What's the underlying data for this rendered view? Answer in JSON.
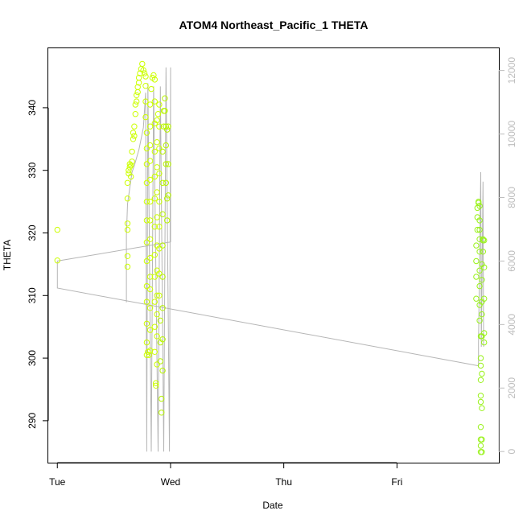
{
  "chart_data": {
    "type": "scatter",
    "title": "ATOM4 Northeast_Pacific_1 THETA",
    "xlabel": "Date",
    "ylabel": "THETA",
    "x_tick_labels": [
      "Tue",
      "Wed",
      "Thu",
      "Fri"
    ],
    "x_unit": "days since Tue 00:00",
    "xlim": [
      -0.08,
      3.9
    ],
    "ylim": [
      283.3,
      349.5
    ],
    "y_ticks": [
      290,
      300,
      310,
      320,
      330,
      340
    ],
    "y2_ticks": [
      0,
      2000,
      4000,
      6000,
      8000,
      10000,
      12000
    ],
    "y2lim": [
      -350,
      12700
    ],
    "colors": {
      "axis": "#000000",
      "secondary_axis": "#bdbdbd",
      "line": "#b5b5b5",
      "point_early": "#ccff00",
      "point_mid": "#b8f500",
      "point_late": "#99f21a"
    },
    "secondary_series": {
      "name": "",
      "style": "line",
      "points": [
        [
          0.0,
          6000
        ],
        [
          0.0,
          5150
        ],
        [
          3.72,
          2700
        ],
        [
          3.72,
          3400
        ],
        [
          3.74,
          8800
        ],
        [
          3.745,
          3300
        ],
        [
          3.76,
          8500
        ],
        [
          3.765,
          3300
        ]
      ],
      "early_points": [
        [
          0.0,
          6000
        ],
        [
          1.0,
          6600
        ],
        [
          1.0,
          12100
        ],
        [
          0.99,
          0
        ],
        [
          0.96,
          12100
        ],
        [
          0.94,
          0
        ],
        [
          0.91,
          11500
        ],
        [
          0.89,
          0
        ],
        [
          0.85,
          11500
        ],
        [
          0.83,
          0
        ],
        [
          0.8,
          11600
        ],
        [
          0.79,
          0
        ],
        [
          0.78,
          11300
        ],
        [
          0.76,
          10200
        ],
        [
          0.72,
          9500
        ],
        [
          0.68,
          9000
        ],
        [
          0.66,
          8800
        ],
        [
          0.62,
          7800
        ],
        [
          0.61,
          6800
        ],
        [
          0.61,
          4700
        ]
      ]
    },
    "series": [
      {
        "name": "",
        "points": [
          [
            0.0,
            320.5
          ],
          [
            0.0,
            315.6
          ],
          [
            0.62,
            314.6
          ],
          [
            0.62,
            316.3
          ],
          [
            0.62,
            320.5
          ],
          [
            0.62,
            321.5
          ],
          [
            0.62,
            325.5
          ],
          [
            0.62,
            328.0
          ],
          [
            0.63,
            329.5
          ],
          [
            0.63,
            330.0
          ],
          [
            0.64,
            330.5
          ],
          [
            0.64,
            331.0
          ],
          [
            0.65,
            329.0
          ],
          [
            0.65,
            330.8
          ],
          [
            0.66,
            331.4
          ],
          [
            0.66,
            333.0
          ],
          [
            0.67,
            335.0
          ],
          [
            0.67,
            336.0
          ],
          [
            0.68,
            335.5
          ],
          [
            0.68,
            337.0
          ],
          [
            0.69,
            339.0
          ],
          [
            0.69,
            340.5
          ],
          [
            0.7,
            341.0
          ],
          [
            0.7,
            342.0
          ],
          [
            0.71,
            342.5
          ],
          [
            0.71,
            343.3
          ],
          [
            0.72,
            344.0
          ],
          [
            0.72,
            344.8
          ],
          [
            0.73,
            345.5
          ],
          [
            0.74,
            346.2
          ],
          [
            0.75,
            347.0
          ],
          [
            0.76,
            346.0
          ],
          [
            0.77,
            345.5
          ],
          [
            0.78,
            345.0
          ],
          [
            0.78,
            343.5
          ],
          [
            0.78,
            341.0
          ],
          [
            0.78,
            338.5
          ],
          [
            0.79,
            336.0
          ],
          [
            0.79,
            333.5
          ],
          [
            0.79,
            331.0
          ],
          [
            0.79,
            328.0
          ],
          [
            0.79,
            325.0
          ],
          [
            0.79,
            322.0
          ],
          [
            0.79,
            318.5
          ],
          [
            0.79,
            315.5
          ],
          [
            0.79,
            311.5
          ],
          [
            0.79,
            309.0
          ],
          [
            0.79,
            305.5
          ],
          [
            0.79,
            302.5
          ],
          [
            0.79,
            300.5
          ],
          [
            0.8,
            301.0
          ],
          [
            0.81,
            300.5
          ],
          [
            0.82,
            301.2
          ],
          [
            0.82,
            304.5
          ],
          [
            0.82,
            308.0
          ],
          [
            0.82,
            311.0
          ],
          [
            0.82,
            313.0
          ],
          [
            0.82,
            316.0
          ],
          [
            0.82,
            319.0
          ],
          [
            0.82,
            322.0
          ],
          [
            0.82,
            325.0
          ],
          [
            0.82,
            328.5
          ],
          [
            0.82,
            331.5
          ],
          [
            0.82,
            334.0
          ],
          [
            0.82,
            337.0
          ],
          [
            0.82,
            340.5
          ],
          [
            0.83,
            343.0
          ],
          [
            0.84,
            344.8
          ],
          [
            0.85,
            345.2
          ],
          [
            0.86,
            344.5
          ],
          [
            0.86,
            341.0
          ],
          [
            0.86,
            337.5
          ],
          [
            0.86,
            333.0
          ],
          [
            0.86,
            329.0
          ],
          [
            0.86,
            325.5
          ],
          [
            0.86,
            321.0
          ],
          [
            0.86,
            316.5
          ],
          [
            0.86,
            313.0
          ],
          [
            0.86,
            309.0
          ],
          [
            0.86,
            305.0
          ],
          [
            0.86,
            301.0
          ],
          [
            0.87,
            296.0
          ],
          [
            0.87,
            295.6
          ],
          [
            0.88,
            299.0
          ],
          [
            0.88,
            303.5
          ],
          [
            0.88,
            307.0
          ],
          [
            0.88,
            310.0
          ],
          [
            0.88,
            314.0
          ],
          [
            0.88,
            318.0
          ],
          [
            0.88,
            322.5
          ],
          [
            0.88,
            326.5
          ],
          [
            0.88,
            330.5
          ],
          [
            0.88,
            334.5
          ],
          [
            0.88,
            338.0
          ],
          [
            0.89,
            339.0
          ],
          [
            0.9,
            340.5
          ],
          [
            0.9,
            337.0
          ],
          [
            0.9,
            333.5
          ],
          [
            0.9,
            329.5
          ],
          [
            0.9,
            325.0
          ],
          [
            0.9,
            321.0
          ],
          [
            0.9,
            317.5
          ],
          [
            0.9,
            313.5
          ],
          [
            0.9,
            310.0
          ],
          [
            0.91,
            306.0
          ],
          [
            0.91,
            302.5
          ],
          [
            0.91,
            299.5
          ],
          [
            0.92,
            293.5
          ],
          [
            0.92,
            291.3
          ],
          [
            0.93,
            298.0
          ],
          [
            0.93,
            303.0
          ],
          [
            0.93,
            308.0
          ],
          [
            0.93,
            313.0
          ],
          [
            0.93,
            318.0
          ],
          [
            0.93,
            323.0
          ],
          [
            0.93,
            328.0
          ],
          [
            0.93,
            333.0
          ],
          [
            0.94,
            337.0
          ],
          [
            0.94,
            339.5
          ],
          [
            0.95,
            341.5
          ],
          [
            0.95,
            339.5
          ],
          [
            0.96,
            337.0
          ],
          [
            0.96,
            334.0
          ],
          [
            0.96,
            331.0
          ],
          [
            0.96,
            328.0
          ],
          [
            0.97,
            325.5
          ],
          [
            0.97,
            322.0
          ],
          [
            0.97,
            336.5
          ],
          [
            0.98,
            337.0
          ],
          [
            0.98,
            331.0
          ],
          [
            0.98,
            326.0
          ],
          [
            3.7,
            309.5
          ],
          [
            3.7,
            313.0
          ],
          [
            3.7,
            315.5
          ],
          [
            3.7,
            318.0
          ],
          [
            3.71,
            320.5
          ],
          [
            3.71,
            322.5
          ],
          [
            3.71,
            324.0
          ],
          [
            3.72,
            324.8
          ],
          [
            3.72,
            325.0
          ],
          [
            3.73,
            324.3
          ],
          [
            3.73,
            322.0
          ],
          [
            3.73,
            320.5
          ],
          [
            3.73,
            319.0
          ],
          [
            3.73,
            317.0
          ],
          [
            3.73,
            314.0
          ],
          [
            3.73,
            311.5
          ],
          [
            3.73,
            308.5
          ],
          [
            3.73,
            306.0
          ],
          [
            3.74,
            303.5
          ],
          [
            3.74,
            300.0
          ],
          [
            3.74,
            298.8
          ],
          [
            3.74,
            296.5
          ],
          [
            3.74,
            294.0
          ],
          [
            3.74,
            293.0
          ],
          [
            3.74,
            289.0
          ],
          [
            3.74,
            287.0
          ],
          [
            3.74,
            286.0
          ],
          [
            3.74,
            285.0
          ],
          [
            3.75,
            285.0
          ],
          [
            3.75,
            287.0
          ],
          [
            3.75,
            292.0
          ],
          [
            3.75,
            297.5
          ],
          [
            3.75,
            303.5
          ],
          [
            3.75,
            307.0
          ],
          [
            3.75,
            309.0
          ],
          [
            3.75,
            312.5
          ],
          [
            3.75,
            315.0
          ],
          [
            3.76,
            317.0
          ],
          [
            3.76,
            318.8
          ],
          [
            3.76,
            319.0
          ],
          [
            3.77,
            318.8
          ],
          [
            3.77,
            314.5
          ],
          [
            3.77,
            309.5
          ],
          [
            3.77,
            304.0
          ],
          [
            3.77,
            302.5
          ]
        ]
      }
    ],
    "grid": false,
    "legend": "none"
  }
}
